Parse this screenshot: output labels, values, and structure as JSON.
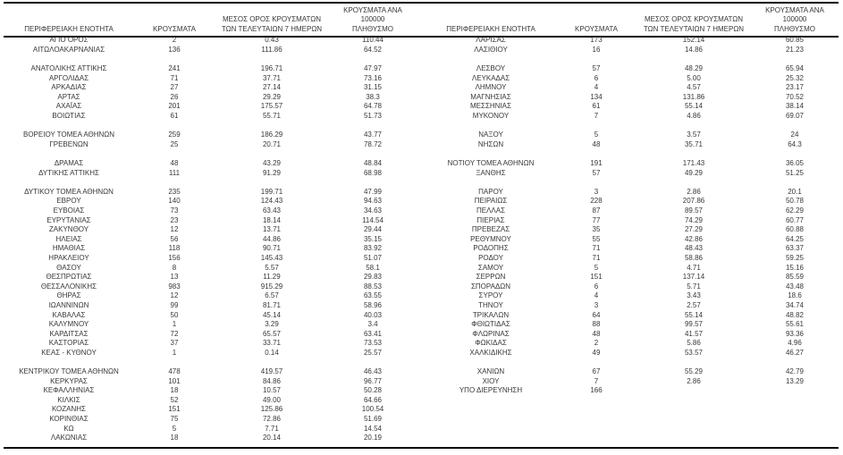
{
  "columns": [
    "ΠΕΡΙΦΕΡΕΙΑΚΗ ΕΝΟΤΗΤΑ",
    "ΚΡΟΥΣΜΑΤΑ",
    "ΜΕΣΟΣ ΟΡΟΣ ΚΡΟΥΣΜΑΤΩΝ\nΤΩΝ ΤΕΛΕΥΤΑΙΩΝ 7 ΗΜΕΡΩΝ",
    "ΚΡΟΥΣΜΑΤΑ ΑΝΑ 100000\nΠΛΗΘΥΣΜΟ"
  ],
  "colors": {
    "text": "#383838",
    "rule": "#000000",
    "background": "#ffffff"
  },
  "tables": [
    {
      "rows": [
        [
          "ΑΓΙΟ ΟΡΟΣ",
          "2",
          "0.43",
          "110.44"
        ],
        [
          "ΑΙΤΩΛΟΑΚΑΡΝΑΝΙΑΣ",
          "136",
          "111.86",
          "64.52"
        ],
        [
          "",
          "",
          "",
          ""
        ],
        [
          "ΑΝΑΤΟΛΙΚΗΣ ΑΤΤΙΚΗΣ",
          "241",
          "196.71",
          "47.97"
        ],
        [
          "ΑΡΓΟΛΙΔΑΣ",
          "71",
          "37.71",
          "73.16"
        ],
        [
          "ΑΡΚΑΔΙΑΣ",
          "27",
          "27.14",
          "31.15"
        ],
        [
          "ΑΡΤΑΣ",
          "26",
          "29.29",
          "38.3"
        ],
        [
          "ΑΧΑΪΑΣ",
          "201",
          "175.57",
          "64.78"
        ],
        [
          "ΒΟΙΩΤΙΑΣ",
          "61",
          "55.71",
          "51.73"
        ],
        [
          "",
          "",
          "",
          ""
        ],
        [
          "ΒΟΡΕΙΟΥ ΤΟΜΕΑ ΑΘΗΝΩΝ",
          "259",
          "186.29",
          "43.77"
        ],
        [
          "ΓΡΕΒΕΝΩΝ",
          "25",
          "20.71",
          "78.72"
        ],
        [
          "",
          "",
          "",
          ""
        ],
        [
          "ΔΡΑΜΑΣ",
          "48",
          "43.29",
          "48.84"
        ],
        [
          "ΔΥΤΙΚΗΣ ΑΤΤΙΚΗΣ",
          "111",
          "91.29",
          "68.98"
        ],
        [
          "",
          "",
          "",
          ""
        ],
        [
          "ΔΥΤΙΚΟΥ ΤΟΜΕΑ ΑΘΗΝΩΝ",
          "235",
          "199.71",
          "47.99"
        ],
        [
          "ΕΒΡΟΥ",
          "140",
          "124.43",
          "94.63"
        ],
        [
          "ΕΥΒΟΙΑΣ",
          "73",
          "63.43",
          "34.63"
        ],
        [
          "ΕΥΡΥΤΑΝΙΑΣ",
          "23",
          "18.14",
          "114.54"
        ],
        [
          "ΖΑΚΥΝΘΟΥ",
          "12",
          "13.71",
          "29.44"
        ],
        [
          "ΗΛΕΙΑΣ",
          "56",
          "44.86",
          "35.15"
        ],
        [
          "ΗΜΑΘΙΑΣ",
          "118",
          "90.71",
          "83.92"
        ],
        [
          "ΗΡΑΚΛΕΙΟΥ",
          "156",
          "145.43",
          "51.07"
        ],
        [
          "ΘΑΣΟΥ",
          "8",
          "5.57",
          "58.1"
        ],
        [
          "ΘΕΣΠΡΩΤΙΑΣ",
          "13",
          "11.29",
          "29.83"
        ],
        [
          "ΘΕΣΣΑΛΟΝΙΚΗΣ",
          "983",
          "915.29",
          "88.53"
        ],
        [
          "ΘΗΡΑΣ",
          "12",
          "6.57",
          "63.55"
        ],
        [
          "ΙΩΑΝΝΙΝΩΝ",
          "99",
          "81.71",
          "58.96"
        ],
        [
          "ΚΑΒΑΛΑΣ",
          "50",
          "45.14",
          "40.03"
        ],
        [
          "ΚΑΛΥΜΝΟΥ",
          "1",
          "3.29",
          "3.4"
        ],
        [
          "ΚΑΡΔΙΤΣΑΣ",
          "72",
          "65.57",
          "63.41"
        ],
        [
          "ΚΑΣΤΟΡΙΑΣ",
          "37",
          "33.71",
          "73.53"
        ],
        [
          "ΚΕΑΣ - ΚΥΘΝΟΥ",
          "1",
          "0.14",
          "25.57"
        ],
        [
          "",
          "",
          "",
          ""
        ],
        [
          "ΚΕΝΤΡΙΚΟΥ ΤΟΜΕΑ ΑΘΗΝΩΝ",
          "478",
          "419.57",
          "46.43"
        ],
        [
          "ΚΕΡΚΥΡΑΣ",
          "101",
          "84.86",
          "96.77"
        ],
        [
          "ΚΕΦΑΛΛΗΝΙΑΣ",
          "18",
          "10.57",
          "50.28"
        ],
        [
          "ΚΙΛΚΙΣ",
          "52",
          "49.00",
          "64.66"
        ],
        [
          "ΚΟΖΑΝΗΣ",
          "151",
          "125.86",
          "100.54"
        ],
        [
          "ΚΟΡΙΝΘΙΑΣ",
          "75",
          "72.86",
          "51.69"
        ],
        [
          "ΚΩ",
          "5",
          "7.71",
          "14.54"
        ],
        [
          "ΛΑΚΩΝΙΑΣ",
          "18",
          "20.14",
          "20.19"
        ]
      ]
    },
    {
      "rows": [
        [
          "ΛΑΡΙΣΑΣ",
          "173",
          "152.14",
          "60.85"
        ],
        [
          "ΛΑΣΙΘΙΟΥ",
          "16",
          "14.86",
          "21.23"
        ],
        [
          "",
          "",
          "",
          ""
        ],
        [
          "ΛΕΣΒΟΥ",
          "57",
          "48.29",
          "65.94"
        ],
        [
          "ΛΕΥΚΑΔΑΣ",
          "6",
          "5.00",
          "25.32"
        ],
        [
          "ΛΗΜΝΟΥ",
          "4",
          "4.57",
          "23.17"
        ],
        [
          "ΜΑΓΝΗΣΙΑΣ",
          "134",
          "131.86",
          "70.52"
        ],
        [
          "ΜΕΣΣΗΝΙΑΣ",
          "61",
          "55.14",
          "38.14"
        ],
        [
          "ΜΥΚΟΝΟΥ",
          "7",
          "4.86",
          "69.07"
        ],
        [
          "",
          "",
          "",
          ""
        ],
        [
          "ΝΑΞΟΥ",
          "5",
          "3.57",
          "24"
        ],
        [
          "ΝΗΣΩΝ",
          "48",
          "35.71",
          "64.3"
        ],
        [
          "",
          "",
          "",
          ""
        ],
        [
          "ΝΟΤΙΟΥ ΤΟΜΕΑ ΑΘΗΝΩΝ",
          "191",
          "171.43",
          "36.05"
        ],
        [
          "ΞΑΝΘΗΣ",
          "57",
          "49.29",
          "51.25"
        ],
        [
          "",
          "",
          "",
          ""
        ],
        [
          "ΠΑΡΟΥ",
          "3",
          "2.86",
          "20.1"
        ],
        [
          "ΠΕΙΡΑΙΩΣ",
          "228",
          "207.86",
          "50.78"
        ],
        [
          "ΠΕΛΛΑΣ",
          "87",
          "89.57",
          "62.29"
        ],
        [
          "ΠΙΕΡΙΑΣ",
          "77",
          "74.29",
          "60.77"
        ],
        [
          "ΠΡΕΒΕΖΑΣ",
          "35",
          "27.29",
          "60.88"
        ],
        [
          "ΡΕΘΥΜΝΟΥ",
          "55",
          "42.86",
          "64.25"
        ],
        [
          "ΡΟΔΟΠΗΣ",
          "71",
          "48.43",
          "63.37"
        ],
        [
          "ΡΟΔΟΥ",
          "71",
          "58.86",
          "59.25"
        ],
        [
          "ΣΑΜΟΥ",
          "5",
          "4.71",
          "15.16"
        ],
        [
          "ΣΕΡΡΩΝ",
          "151",
          "137.14",
          "85.59"
        ],
        [
          "ΣΠΟΡΑΔΩΝ",
          "6",
          "5.71",
          "43.48"
        ],
        [
          "ΣΥΡΟΥ",
          "4",
          "3.43",
          "18.6"
        ],
        [
          "ΤΗΝΟΥ",
          "3",
          "2.57",
          "34.74"
        ],
        [
          "ΤΡΙΚΑΛΩΝ",
          "64",
          "55.14",
          "48.82"
        ],
        [
          "ΦΘΙΩΤΙΔΑΣ",
          "88",
          "99.57",
          "55.61"
        ],
        [
          "ΦΛΩΡΙΝΑΣ",
          "48",
          "41.57",
          "93.36"
        ],
        [
          "ΦΩΚΙΔΑΣ",
          "2",
          "5.86",
          "4.96"
        ],
        [
          "ΧΑΛΚΙΔΙΚΗΣ",
          "49",
          "53.57",
          "46.27"
        ],
        [
          "",
          "",
          "",
          ""
        ],
        [
          "ΧΑΝΙΩΝ",
          "67",
          "55.29",
          "42.79"
        ],
        [
          "ΧΙΟΥ",
          "7",
          "2.86",
          "13.29"
        ],
        [
          "ΥΠΟ ΔΙΕΡΕΥΝΗΣΗ",
          "166",
          "",
          ""
        ],
        [
          "",
          "",
          "",
          ""
        ],
        [
          "",
          "",
          "",
          ""
        ],
        [
          "",
          "",
          "",
          ""
        ],
        [
          "",
          "",
          "",
          ""
        ],
        [
          "",
          "",
          "",
          ""
        ]
      ]
    }
  ]
}
